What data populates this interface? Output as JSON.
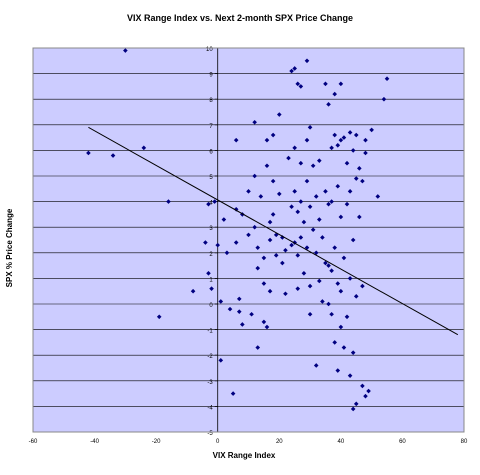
{
  "chart_data": {
    "type": "scatter",
    "title": "VIX Range Index vs. Next 2-month SPX Price Change",
    "xlabel": "VIX Range Index",
    "ylabel": "SPX % Price Change",
    "xlim": [
      -60,
      80
    ],
    "ylim": [
      -5,
      10
    ],
    "xticks": [
      -60,
      -40,
      -20,
      0,
      20,
      40,
      60,
      80
    ],
    "yticks": [
      -5,
      -4,
      -3,
      -2,
      -1,
      0,
      1,
      2,
      3,
      4,
      5,
      6,
      7,
      8,
      9,
      10
    ],
    "grid": "horizontal",
    "legend": "none",
    "colors": {
      "plot_bg": "#ccccff",
      "marker": "#000080",
      "frame": "#888888",
      "line": "#000000"
    },
    "trendline": {
      "x": [
        -42,
        78
      ],
      "y": [
        6.9,
        -1.2
      ]
    },
    "points": [
      {
        "x": -30,
        "y": 9.9
      },
      {
        "x": -42,
        "y": 5.9
      },
      {
        "x": -34,
        "y": 5.8
      },
      {
        "x": -24,
        "y": 6.1
      },
      {
        "x": -16,
        "y": 4.0
      },
      {
        "x": -8,
        "y": 0.5
      },
      {
        "x": -19,
        "y": -0.5
      },
      {
        "x": -4,
        "y": 2.4
      },
      {
        "x": -3,
        "y": 3.9
      },
      {
        "x": -3,
        "y": 1.2
      },
      {
        "x": -2,
        "y": 0.6
      },
      {
        "x": -1,
        "y": 4.0
      },
      {
        "x": 0,
        "y": 2.3
      },
      {
        "x": 1,
        "y": 0.1
      },
      {
        "x": 1,
        "y": -2.2
      },
      {
        "x": 2,
        "y": 3.3
      },
      {
        "x": 3,
        "y": 2.0
      },
      {
        "x": 4,
        "y": -0.2
      },
      {
        "x": 5,
        "y": -3.5
      },
      {
        "x": 6,
        "y": 6.4
      },
      {
        "x": 6,
        "y": 3.7
      },
      {
        "x": 6,
        "y": 2.4
      },
      {
        "x": 7,
        "y": 0.2
      },
      {
        "x": 7,
        "y": -0.3
      },
      {
        "x": 8,
        "y": 3.5
      },
      {
        "x": 8,
        "y": -0.8
      },
      {
        "x": 10,
        "y": 4.4
      },
      {
        "x": 10,
        "y": 2.7
      },
      {
        "x": 11,
        "y": -0.4
      },
      {
        "x": 12,
        "y": 7.1
      },
      {
        "x": 12,
        "y": 5.0
      },
      {
        "x": 12,
        "y": 3.0
      },
      {
        "x": 13,
        "y": 2.2
      },
      {
        "x": 13,
        "y": 1.4
      },
      {
        "x": 13,
        "y": -1.7
      },
      {
        "x": 14,
        "y": 4.2
      },
      {
        "x": 15,
        "y": 1.8
      },
      {
        "x": 15,
        "y": 0.8
      },
      {
        "x": 15,
        "y": -0.7
      },
      {
        "x": 16,
        "y": 6.4
      },
      {
        "x": 16,
        "y": 5.4
      },
      {
        "x": 16,
        "y": -0.9
      },
      {
        "x": 17,
        "y": 3.2
      },
      {
        "x": 17,
        "y": 2.5
      },
      {
        "x": 17,
        "y": 0.5
      },
      {
        "x": 18,
        "y": 6.6
      },
      {
        "x": 18,
        "y": 4.8
      },
      {
        "x": 18,
        "y": 3.5
      },
      {
        "x": 19,
        "y": 2.7
      },
      {
        "x": 20,
        "y": 7.4
      },
      {
        "x": 20,
        "y": 4.3
      },
      {
        "x": 21,
        "y": 1.6
      },
      {
        "x": 22,
        "y": 2.1
      },
      {
        "x": 22,
        "y": 0.4
      },
      {
        "x": 23,
        "y": 5.7
      },
      {
        "x": 24,
        "y": 9.1
      },
      {
        "x": 24,
        "y": 3.8
      },
      {
        "x": 24,
        "y": 2.3
      },
      {
        "x": 25,
        "y": 9.2
      },
      {
        "x": 25,
        "y": 6.1
      },
      {
        "x": 25,
        "y": 4.4
      },
      {
        "x": 25,
        "y": 2.4
      },
      {
        "x": 26,
        "y": 8.6
      },
      {
        "x": 26,
        "y": 3.6
      },
      {
        "x": 26,
        "y": 1.9
      },
      {
        "x": 26,
        "y": 0.6
      },
      {
        "x": 27,
        "y": 8.5
      },
      {
        "x": 27,
        "y": 5.5
      },
      {
        "x": 27,
        "y": 4.0
      },
      {
        "x": 27,
        "y": 2.6
      },
      {
        "x": 28,
        "y": 3.2
      },
      {
        "x": 28,
        "y": 1.2
      },
      {
        "x": 29,
        "y": 9.5
      },
      {
        "x": 29,
        "y": 6.4
      },
      {
        "x": 29,
        "y": 4.8
      },
      {
        "x": 29,
        "y": 2.2
      },
      {
        "x": 30,
        "y": 6.9
      },
      {
        "x": 30,
        "y": 3.8
      },
      {
        "x": 30,
        "y": 0.7
      },
      {
        "x": 30,
        "y": -0.4
      },
      {
        "x": 31,
        "y": 5.4
      },
      {
        "x": 31,
        "y": 2.9
      },
      {
        "x": 32,
        "y": 4.2
      },
      {
        "x": 32,
        "y": 2.0
      },
      {
        "x": 32,
        "y": -2.4
      },
      {
        "x": 33,
        "y": 5.6
      },
      {
        "x": 33,
        "y": 3.3
      },
      {
        "x": 33,
        "y": 0.9
      },
      {
        "x": 34,
        "y": 2.6
      },
      {
        "x": 34,
        "y": 0.1
      },
      {
        "x": 35,
        "y": 8.6
      },
      {
        "x": 35,
        "y": 4.4
      },
      {
        "x": 35,
        "y": 1.6
      },
      {
        "x": 36,
        "y": 7.8
      },
      {
        "x": 36,
        "y": 3.9
      },
      {
        "x": 36,
        "y": 0.0
      },
      {
        "x": 37,
        "y": 6.1
      },
      {
        "x": 37,
        "y": 4.0
      },
      {
        "x": 37,
        "y": 1.3
      },
      {
        "x": 37,
        "y": -0.4
      },
      {
        "x": 38,
        "y": 8.2
      },
      {
        "x": 38,
        "y": 6.6
      },
      {
        "x": 38,
        "y": 2.2
      },
      {
        "x": 38,
        "y": -1.5
      },
      {
        "x": 39,
        "y": 6.2
      },
      {
        "x": 39,
        "y": 4.6
      },
      {
        "x": 39,
        "y": 0.8
      },
      {
        "x": 39,
        "y": -2.6
      },
      {
        "x": 40,
        "y": 8.6
      },
      {
        "x": 40,
        "y": 6.4
      },
      {
        "x": 40,
        "y": 3.4
      },
      {
        "x": 40,
        "y": -0.9
      },
      {
        "x": 41,
        "y": 6.5
      },
      {
        "x": 41,
        "y": 1.8
      },
      {
        "x": 41,
        "y": -1.7
      },
      {
        "x": 42,
        "y": 5.5
      },
      {
        "x": 42,
        "y": 3.9
      },
      {
        "x": 42,
        "y": -0.5
      },
      {
        "x": 43,
        "y": 6.7
      },
      {
        "x": 43,
        "y": 4.4
      },
      {
        "x": 43,
        "y": 1.0
      },
      {
        "x": 43,
        "y": -2.8
      },
      {
        "x": 44,
        "y": 6.0
      },
      {
        "x": 44,
        "y": 2.5
      },
      {
        "x": 44,
        "y": -1.9
      },
      {
        "x": 44,
        "y": -4.1
      },
      {
        "x": 45,
        "y": 6.6
      },
      {
        "x": 45,
        "y": 4.9
      },
      {
        "x": 45,
        "y": 0.3
      },
      {
        "x": 45,
        "y": -3.9
      },
      {
        "x": 46,
        "y": 5.3
      },
      {
        "x": 46,
        "y": 3.4
      },
      {
        "x": 47,
        "y": 4.8
      },
      {
        "x": 47,
        "y": 0.7
      },
      {
        "x": 47,
        "y": -3.2
      },
      {
        "x": 48,
        "y": 6.4
      },
      {
        "x": 48,
        "y": 5.9
      },
      {
        "x": 48,
        "y": -3.6
      },
      {
        "x": 49,
        "y": -3.4
      },
      {
        "x": 50,
        "y": 6.8
      },
      {
        "x": 52,
        "y": 4.2
      },
      {
        "x": 54,
        "y": 8.0
      },
      {
        "x": 55,
        "y": 8.8
      },
      {
        "x": 40,
        "y": 0.5
      },
      {
        "x": 36,
        "y": 1.5
      },
      {
        "x": 21,
        "y": 2.6
      },
      {
        "x": 19,
        "y": 1.9
      }
    ]
  }
}
